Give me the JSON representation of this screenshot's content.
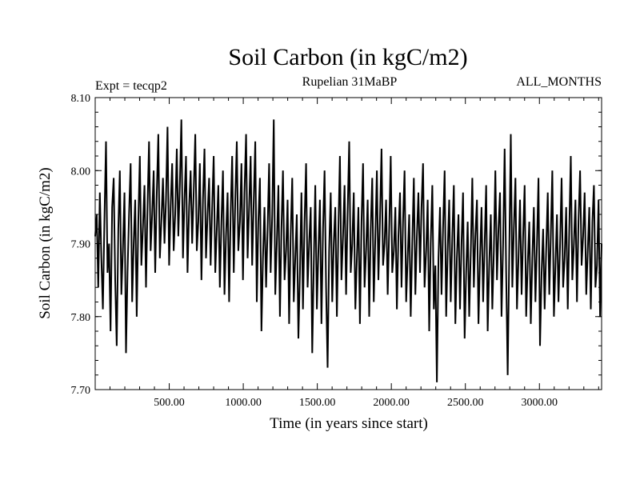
{
  "chart_data": {
    "type": "line",
    "title": "Soil Carbon (in kgC/m2)",
    "subtitle_left": "Expt = tecqp2",
    "subtitle_center": "Rupelian  31MaBP",
    "subtitle_right": "ALL_MONTHS",
    "xlabel": "Time (in years since start)",
    "ylabel": "Soil Carbon (in kgC/m2)",
    "xlim": [
      0,
      3420
    ],
    "ylim": [
      7.7,
      8.1
    ],
    "x_ticks": [
      500,
      1000,
      1500,
      2000,
      2500,
      3000
    ],
    "x_tick_labels": [
      "500.00",
      "1000.00",
      "1500.00",
      "2000.00",
      "2500.00",
      "3000.00"
    ],
    "y_ticks": [
      7.7,
      7.8,
      7.9,
      8.0,
      8.1
    ],
    "y_tick_labels": [
      "7.70",
      "7.80",
      "7.90",
      "8.00",
      "8.10"
    ],
    "grid": false,
    "series": [
      {
        "color": "#000000",
        "x_step": 10,
        "values": [
          7.91,
          7.94,
          7.84,
          7.97,
          7.88,
          7.81,
          7.93,
          8.04,
          7.86,
          7.9,
          7.78,
          7.95,
          7.99,
          7.85,
          7.76,
          7.92,
          8.0,
          7.83,
          7.89,
          7.97,
          7.75,
          7.86,
          7.94,
          8.01,
          7.82,
          7.9,
          7.96,
          7.8,
          7.93,
          8.02,
          7.87,
          7.92,
          7.98,
          7.84,
          7.95,
          8.04,
          7.89,
          7.94,
          8.0,
          7.86,
          7.97,
          8.05,
          7.88,
          7.93,
          7.99,
          7.9,
          7.96,
          8.06,
          7.87,
          7.95,
          8.01,
          7.89,
          7.94,
          8.03,
          7.91,
          7.98,
          8.07,
          7.88,
          7.96,
          8.02,
          7.86,
          7.95,
          8.0,
          7.9,
          7.97,
          8.05,
          7.89,
          7.93,
          8.01,
          7.85,
          7.96,
          8.03,
          7.88,
          7.94,
          7.99,
          7.87,
          7.95,
          8.02,
          7.86,
          7.92,
          7.98,
          7.84,
          7.93,
          8.0,
          7.83,
          7.91,
          7.97,
          7.82,
          7.94,
          8.02,
          7.86,
          7.96,
          8.04,
          7.89,
          7.93,
          8.01,
          7.85,
          7.97,
          8.05,
          7.88,
          7.95,
          8.02,
          7.87,
          7.96,
          8.04,
          7.82,
          7.93,
          7.99,
          7.78,
          7.88,
          7.95,
          7.84,
          7.92,
          8.01,
          7.86,
          7.94,
          8.07,
          7.83,
          7.9,
          7.98,
          7.8,
          7.92,
          8.0,
          7.85,
          7.89,
          7.96,
          7.79,
          7.91,
          7.99,
          7.82,
          7.88,
          7.94,
          7.77,
          7.86,
          7.97,
          7.81,
          7.93,
          8.01,
          7.84,
          7.9,
          7.95,
          7.75,
          7.87,
          7.98,
          7.81,
          7.89,
          7.96,
          7.79,
          7.92,
          8.0,
          7.84,
          7.73,
          7.89,
          7.97,
          7.82,
          7.9,
          7.95,
          7.8,
          7.92,
          8.02,
          7.85,
          7.91,
          7.98,
          7.83,
          7.94,
          8.04,
          7.86,
          7.9,
          7.97,
          7.81,
          7.88,
          7.95,
          7.79,
          7.93,
          8.01,
          7.84,
          7.89,
          7.96,
          7.8,
          7.92,
          7.99,
          7.82,
          7.91,
          8.0,
          7.85,
          7.93,
          8.03,
          7.87,
          7.9,
          7.96,
          7.83,
          7.92,
          8.02,
          7.86,
          7.89,
          7.95,
          7.81,
          7.91,
          7.97,
          7.84,
          7.93,
          8.0,
          7.82,
          7.88,
          7.94,
          7.8,
          7.9,
          7.99,
          7.83,
          7.91,
          7.97,
          7.86,
          7.95,
          8.01,
          7.84,
          7.89,
          7.96,
          7.78,
          7.9,
          7.98,
          7.81,
          7.87,
          7.71,
          7.88,
          7.95,
          7.83,
          7.92,
          8.0,
          7.8,
          7.89,
          7.96,
          7.82,
          7.91,
          7.98,
          7.79,
          7.88,
          7.94,
          7.81,
          7.9,
          7.97,
          7.77,
          7.86,
          7.93,
          7.8,
          7.89,
          7.99,
          7.84,
          7.91,
          7.96,
          7.79,
          7.88,
          7.95,
          7.82,
          7.9,
          7.98,
          7.78,
          7.87,
          7.94,
          7.81,
          7.89,
          8.0,
          7.85,
          7.92,
          7.97,
          7.8,
          7.9,
          8.03,
          7.86,
          7.72,
          7.89,
          8.05,
          7.84,
          7.92,
          7.99,
          7.81,
          7.88,
          7.96,
          7.83,
          7.91,
          7.98,
          7.8,
          7.87,
          7.93,
          7.79,
          7.88,
          7.95,
          7.82,
          7.9,
          7.99,
          7.76,
          7.86,
          7.92,
          7.81,
          7.89,
          7.97,
          7.83,
          7.91,
          8.0,
          7.8,
          7.87,
          7.94,
          7.82,
          7.9,
          7.99,
          7.84,
          7.88,
          7.95,
          7.81,
          7.92,
          8.02,
          7.85,
          7.9,
          7.96,
          7.82,
          7.93,
          8.0,
          7.87,
          7.91,
          7.97,
          7.83,
          7.89,
          7.95,
          7.81,
          7.93,
          7.98,
          7.84,
          7.87,
          7.96,
          7.8,
          7.9
        ]
      }
    ]
  }
}
